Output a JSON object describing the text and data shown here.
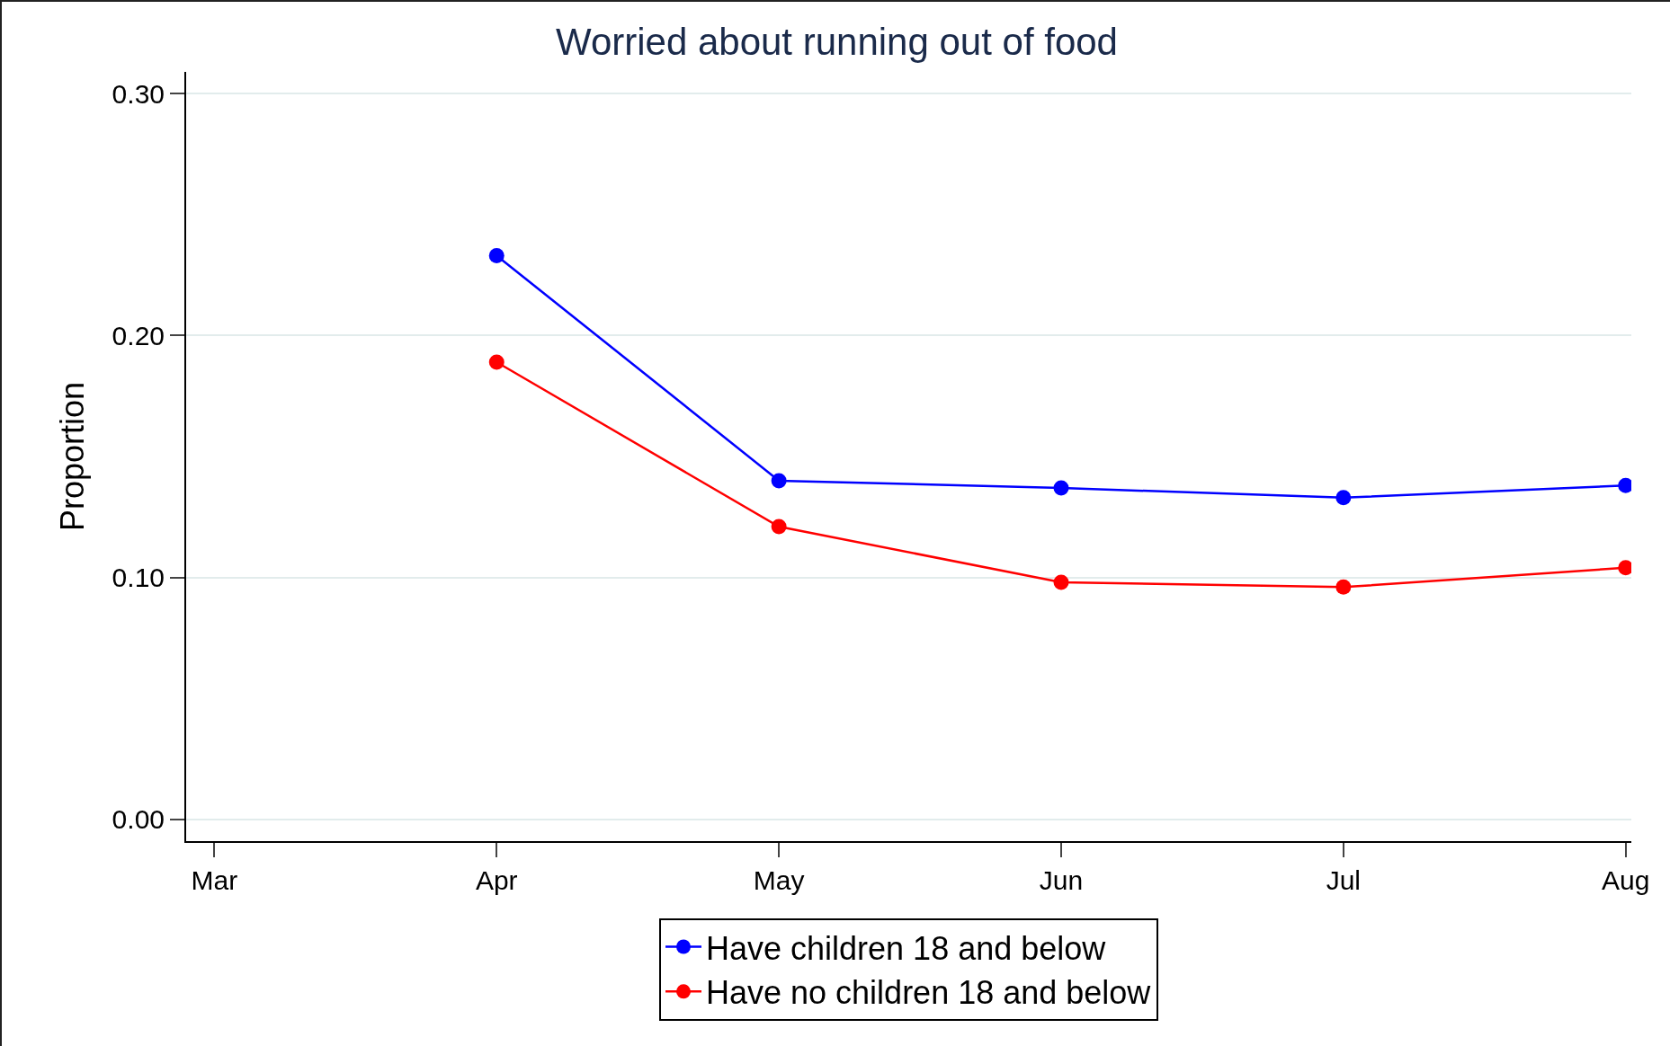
{
  "chart_data": {
    "type": "line",
    "title": "Worried about running out of food",
    "ylabel": "Proportion",
    "categories": [
      "Mar",
      "Apr",
      "May",
      "Jun",
      "Jul",
      "Aug"
    ],
    "series": [
      {
        "name": "Have children 18 and below",
        "color": "#0000ff",
        "values": [
          null,
          0.233,
          0.14,
          0.137,
          0.133,
          0.138
        ]
      },
      {
        "name": "Have no children 18 and below",
        "color": "#ff0000",
        "values": [
          null,
          0.189,
          0.121,
          0.098,
          0.096,
          0.104
        ]
      }
    ],
    "ylim": [
      -0.009,
      0.309
    ],
    "yticks": [
      {
        "value": 0,
        "label": "0.00"
      },
      {
        "value": 0.1,
        "label": "0.10"
      },
      {
        "value": 0.2,
        "label": "0.20"
      },
      {
        "value": 0.3,
        "label": "0.30"
      }
    ],
    "grid": "y",
    "legend": "bottom",
    "marker": "circle",
    "line_style": "solid"
  }
}
